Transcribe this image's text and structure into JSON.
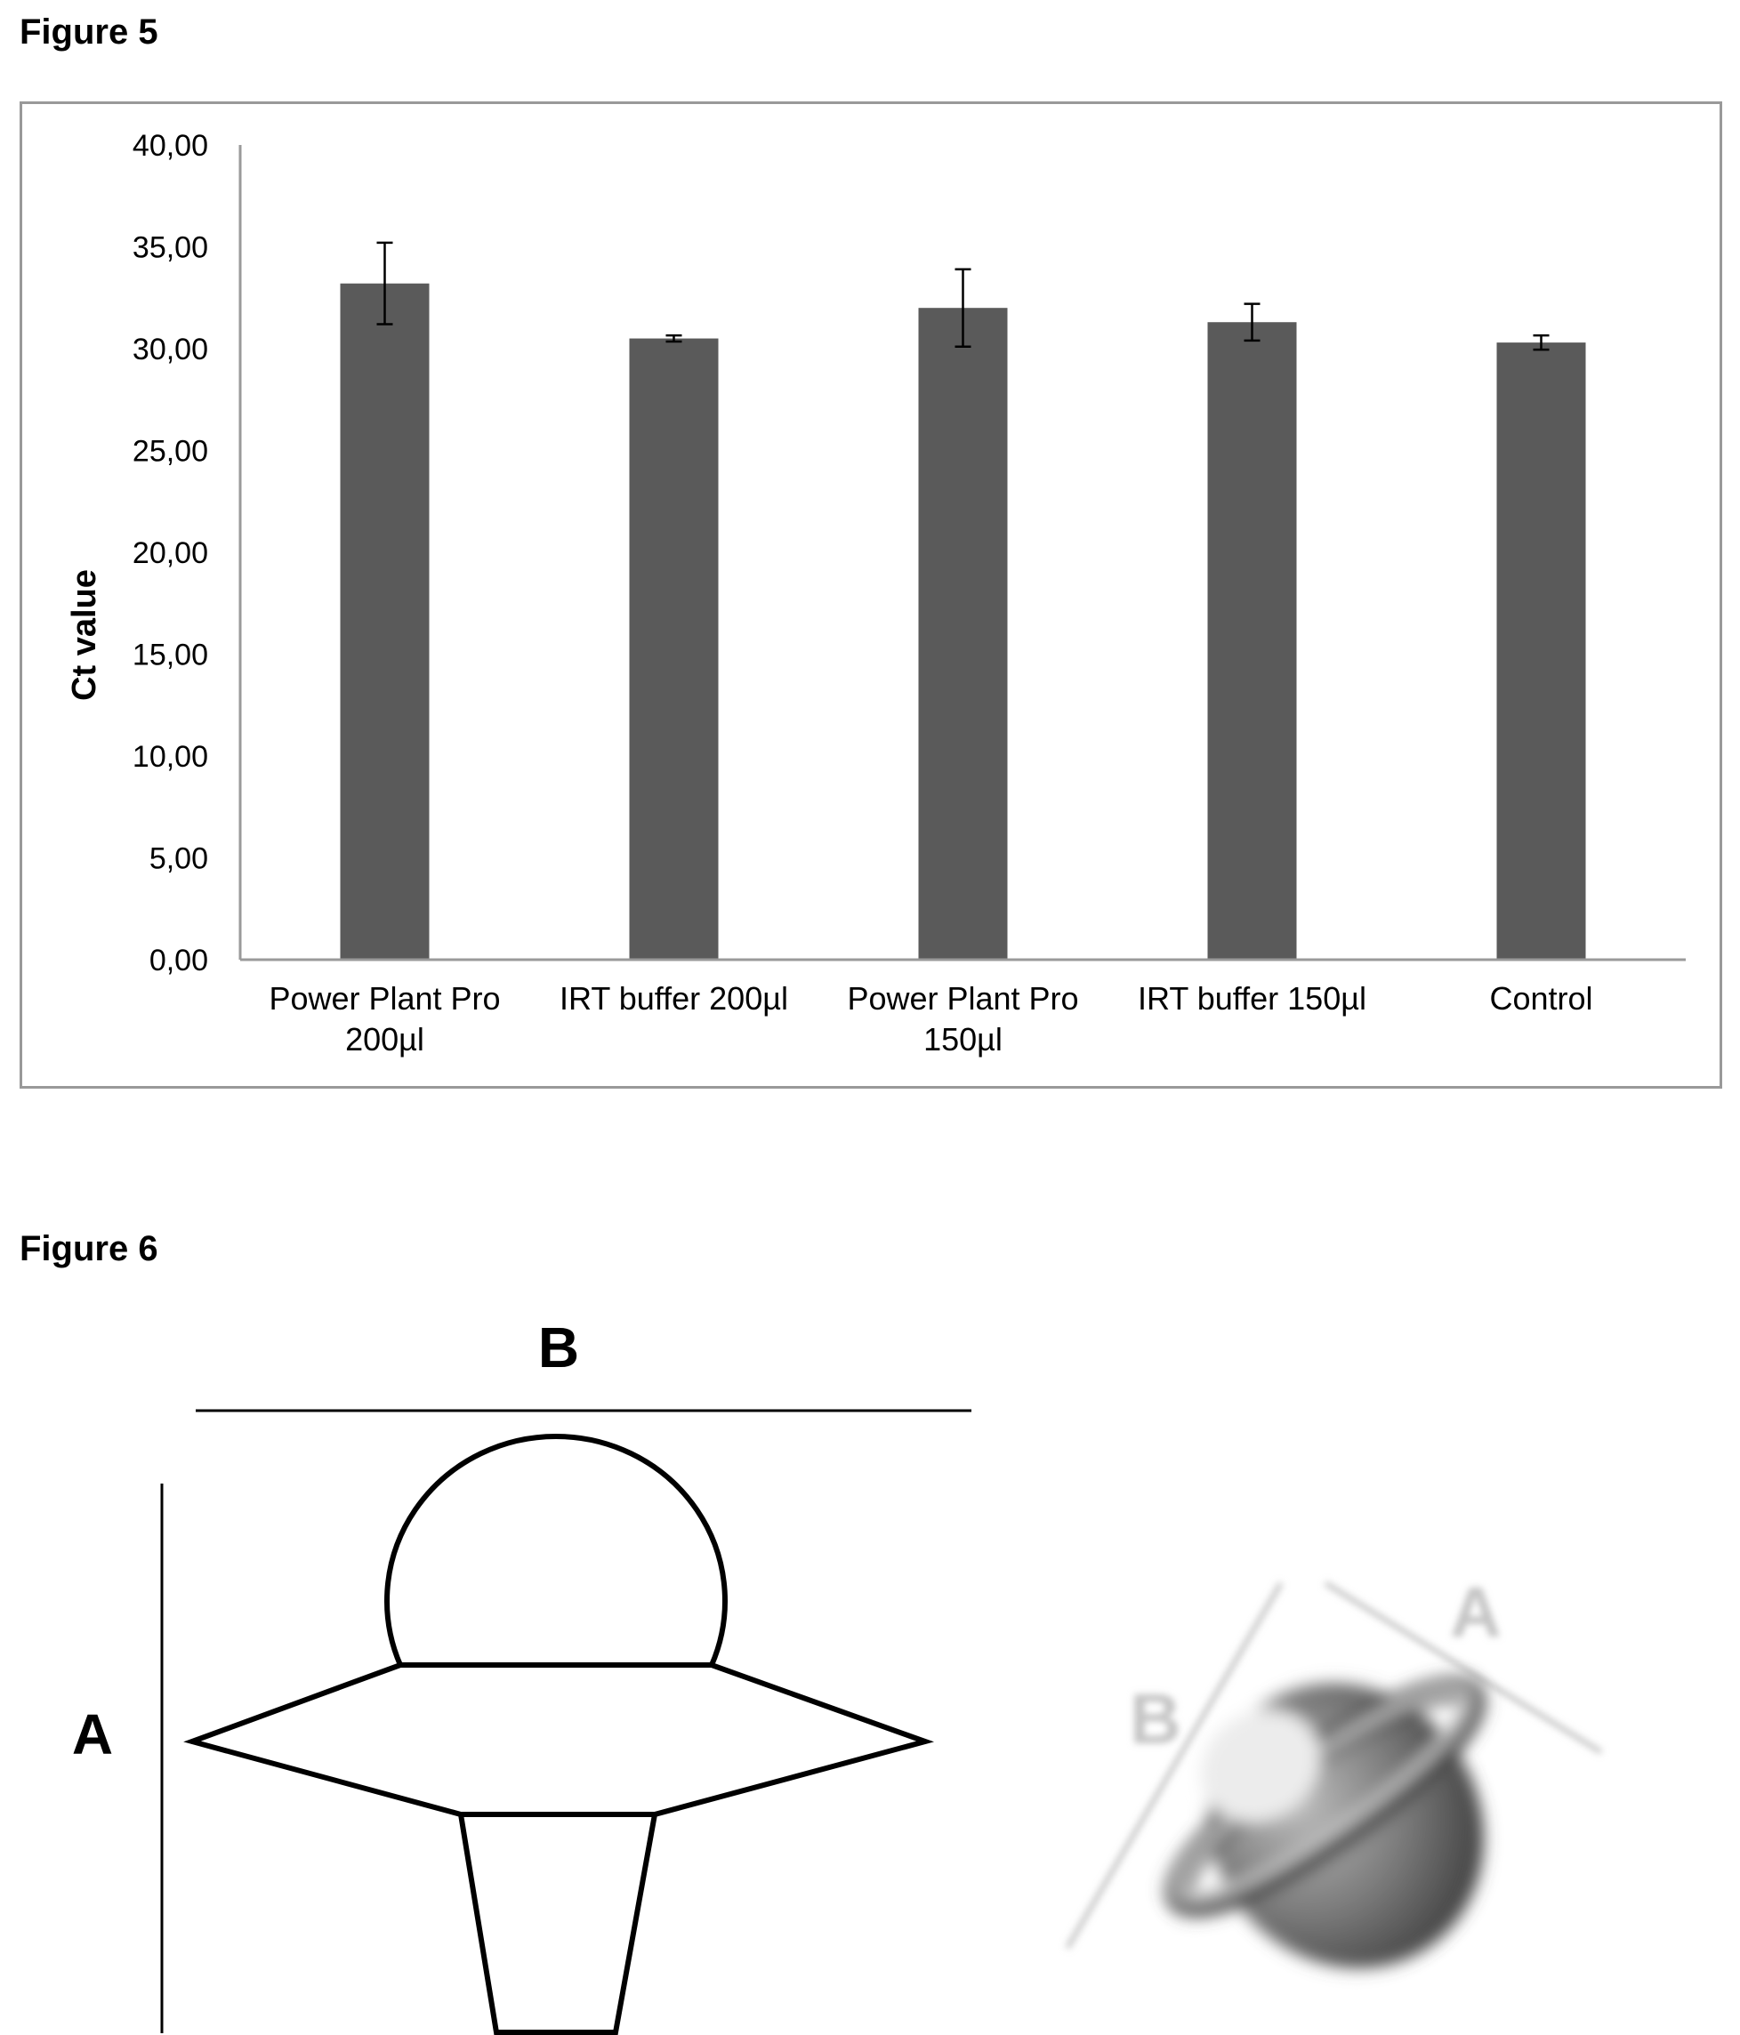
{
  "figure5": {
    "title": "Figure 5",
    "chart_data": {
      "type": "bar",
      "title": "",
      "xlabel": "",
      "ylabel": "Ct value",
      "ylim": [
        0,
        40
      ],
      "grid": false,
      "yticks": [
        "0,00",
        "5,00",
        "10,00",
        "15,00",
        "20,00",
        "25,00",
        "30,00",
        "35,00",
        "40,00"
      ],
      "categories": [
        [
          "Power Plant Pro",
          "200µl"
        ],
        [
          "IRT buffer 200µl"
        ],
        [
          "Power Plant Pro",
          "150µl"
        ],
        [
          "IRT buffer 150µl"
        ],
        [
          "Control"
        ]
      ],
      "values": [
        33.2,
        30.5,
        32.0,
        31.3,
        30.3
      ],
      "errors": [
        2.0,
        0.15,
        1.9,
        0.9,
        0.35
      ],
      "bar_color": "#5a5a5a"
    }
  },
  "figure6": {
    "title": "Figure 6",
    "diagram": {
      "label_b": "B",
      "label_a": "A"
    },
    "photo": {
      "label_b": "B",
      "label_a": "A"
    }
  }
}
